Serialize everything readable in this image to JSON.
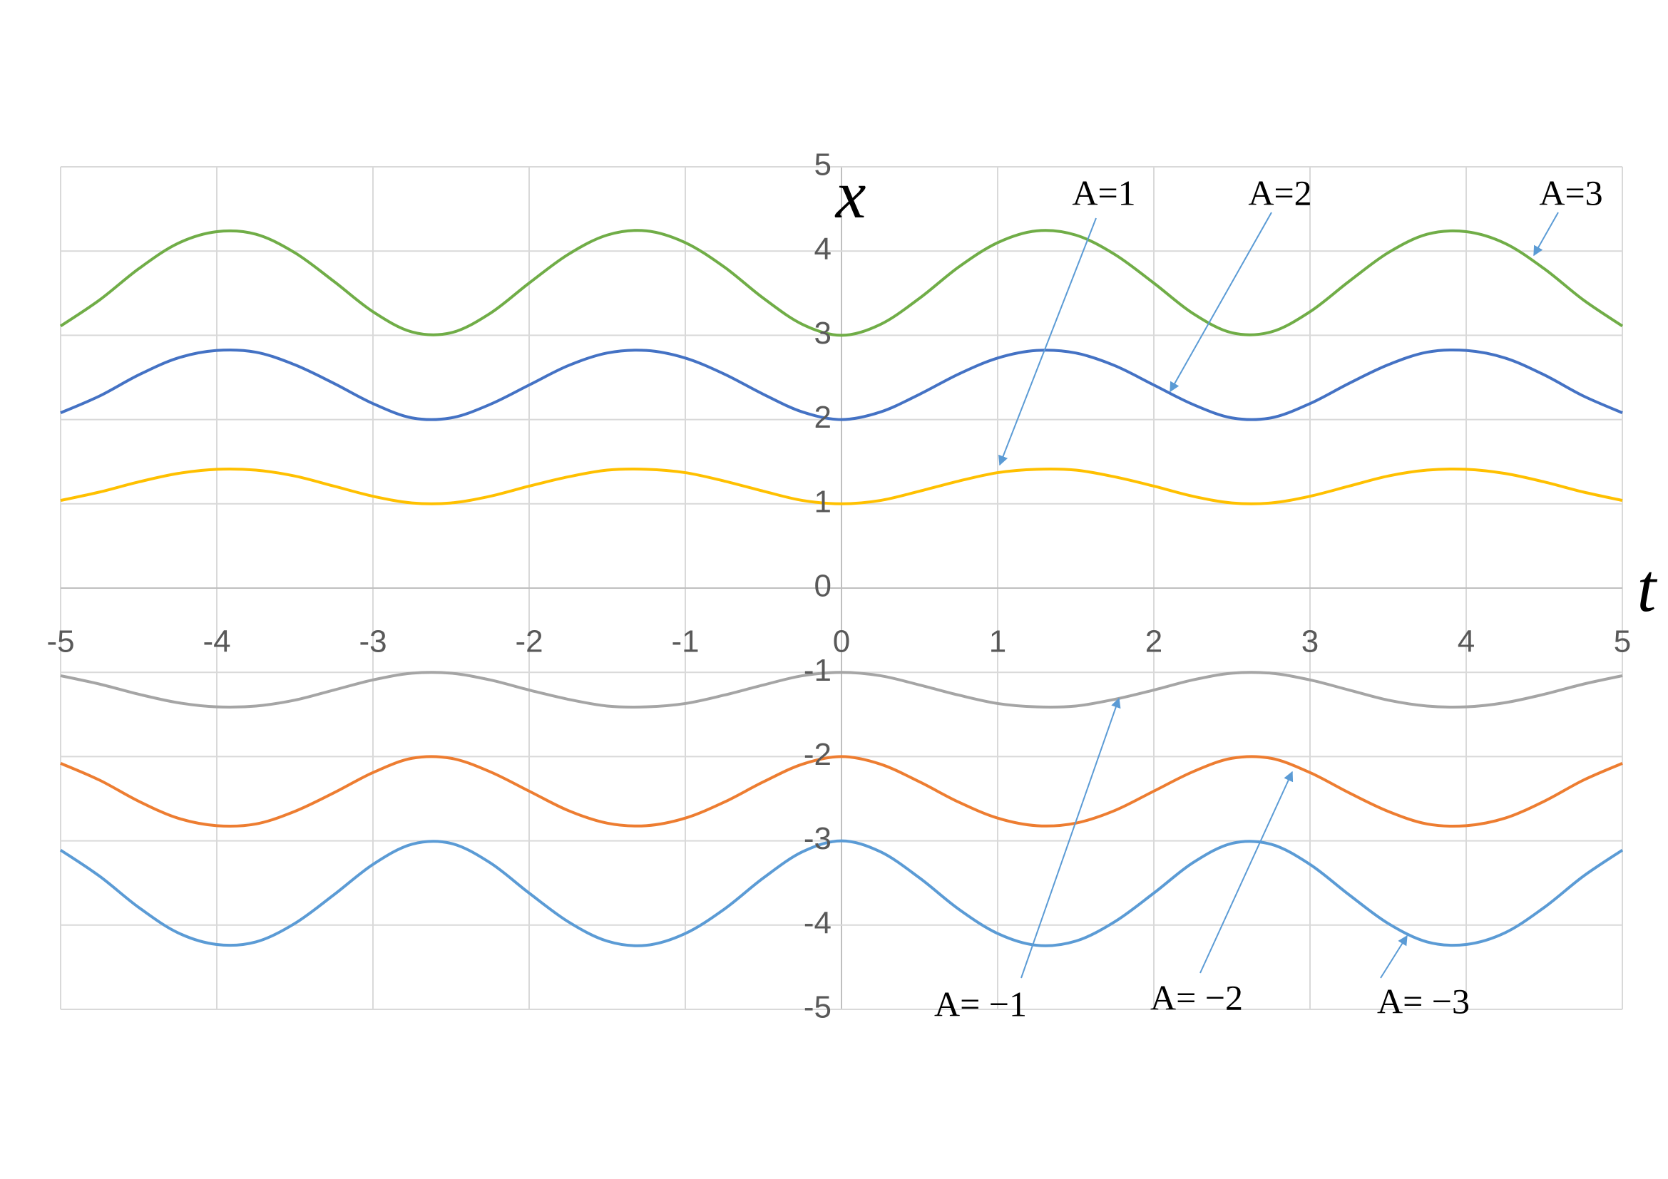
{
  "chart_data": {
    "type": "line",
    "x_label": "t",
    "y_label": "x",
    "xlim": [
      -5,
      5
    ],
    "ylim": [
      -5,
      5
    ],
    "xticks": [
      -5,
      -4,
      -3,
      -2,
      -1,
      0,
      1,
      2,
      3,
      4,
      5
    ],
    "yticks": [
      -5,
      -4,
      -3,
      -2,
      -1,
      0,
      1,
      2,
      3,
      4,
      5
    ],
    "grid": true,
    "x": [
      -5,
      -4.75,
      -4.5,
      -4.25,
      -4,
      -3.75,
      -3.5,
      -3.25,
      -3,
      -2.75,
      -2.5,
      -2.25,
      -2,
      -1.75,
      -1.5,
      -1.25,
      -1,
      -0.75,
      -0.5,
      -0.25,
      0,
      0.25,
      0.5,
      0.75,
      1,
      1.25,
      1.5,
      1.75,
      2,
      2.25,
      2.5,
      2.75,
      3,
      3.25,
      3.5,
      3.75,
      4,
      4.25,
      4.5,
      4.75,
      5
    ],
    "series": [
      {
        "name": "A=3",
        "color": "#70ad47",
        "values": [
          3.11,
          3.42,
          3.79,
          4.09,
          4.23,
          4.2,
          3.98,
          3.64,
          3.28,
          3.04,
          3.03,
          3.26,
          3.62,
          3.96,
          4.19,
          4.24,
          4.1,
          3.81,
          3.44,
          3.13,
          3,
          3.13,
          3.44,
          3.81,
          4.1,
          4.24,
          4.19,
          3.96,
          3.62,
          3.26,
          3.03,
          3.04,
          3.28,
          3.64,
          3.98,
          4.2,
          4.23,
          4.09,
          3.79,
          3.42,
          3.11
        ]
      },
      {
        "name": "A=2",
        "color": "#4472c4",
        "values": [
          2.08,
          2.28,
          2.53,
          2.73,
          2.82,
          2.8,
          2.65,
          2.43,
          2.19,
          2.02,
          2.02,
          2.18,
          2.41,
          2.64,
          2.79,
          2.82,
          2.73,
          2.54,
          2.3,
          2.09,
          2,
          2.09,
          2.3,
          2.54,
          2.73,
          2.82,
          2.79,
          2.64,
          2.41,
          2.18,
          2.02,
          2.02,
          2.19,
          2.43,
          2.65,
          2.8,
          2.82,
          2.73,
          2.53,
          2.28,
          2.08
        ]
      },
      {
        "name": "A=1",
        "color": "#ffc000",
        "values": [
          1.04,
          1.14,
          1.26,
          1.36,
          1.41,
          1.4,
          1.33,
          1.21,
          1.09,
          1.01,
          1.01,
          1.09,
          1.21,
          1.32,
          1.4,
          1.41,
          1.37,
          1.27,
          1.15,
          1.04,
          1,
          1.04,
          1.15,
          1.27,
          1.37,
          1.41,
          1.4,
          1.32,
          1.21,
          1.09,
          1.01,
          1.01,
          1.09,
          1.21,
          1.33,
          1.4,
          1.41,
          1.36,
          1.26,
          1.14,
          1.04
        ]
      },
      {
        "name": "A= −1",
        "color": "#a5a5a5",
        "values": [
          -1.04,
          -1.14,
          -1.26,
          -1.36,
          -1.41,
          -1.4,
          -1.33,
          -1.21,
          -1.09,
          -1.01,
          -1.01,
          -1.09,
          -1.21,
          -1.32,
          -1.4,
          -1.41,
          -1.37,
          -1.27,
          -1.15,
          -1.04,
          -1,
          -1.04,
          -1.15,
          -1.27,
          -1.37,
          -1.41,
          -1.4,
          -1.32,
          -1.21,
          -1.09,
          -1.01,
          -1.01,
          -1.09,
          -1.21,
          -1.33,
          -1.4,
          -1.41,
          -1.36,
          -1.26,
          -1.14,
          -1.04
        ]
      },
      {
        "name": "A= −2",
        "color": "#ed7d31",
        "values": [
          -2.08,
          -2.28,
          -2.53,
          -2.73,
          -2.82,
          -2.8,
          -2.65,
          -2.43,
          -2.19,
          -2.02,
          -2.02,
          -2.18,
          -2.41,
          -2.64,
          -2.79,
          -2.82,
          -2.73,
          -2.54,
          -2.3,
          -2.09,
          -2,
          -2.09,
          -2.3,
          -2.54,
          -2.73,
          -2.82,
          -2.79,
          -2.64,
          -2.41,
          -2.18,
          -2.02,
          -2.02,
          -2.19,
          -2.43,
          -2.65,
          -2.8,
          -2.82,
          -2.73,
          -2.53,
          -2.28,
          -2.08
        ]
      },
      {
        "name": "A= −3",
        "color": "#5b9bd5",
        "values": [
          -3.11,
          -3.42,
          -3.79,
          -4.09,
          -4.23,
          -4.2,
          -3.98,
          -3.64,
          -3.28,
          -3.04,
          -3.03,
          -3.26,
          -3.62,
          -3.96,
          -4.19,
          -4.24,
          -4.1,
          -3.81,
          -3.44,
          -3.13,
          -3,
          -3.13,
          -3.44,
          -3.81,
          -4.1,
          -4.24,
          -4.19,
          -3.96,
          -3.62,
          -3.26,
          -3.03,
          -3.04,
          -3.28,
          -3.64,
          -3.98,
          -4.2,
          -4.23,
          -4.09,
          -3.79,
          -3.42,
          -3.11
        ]
      }
    ]
  }
}
